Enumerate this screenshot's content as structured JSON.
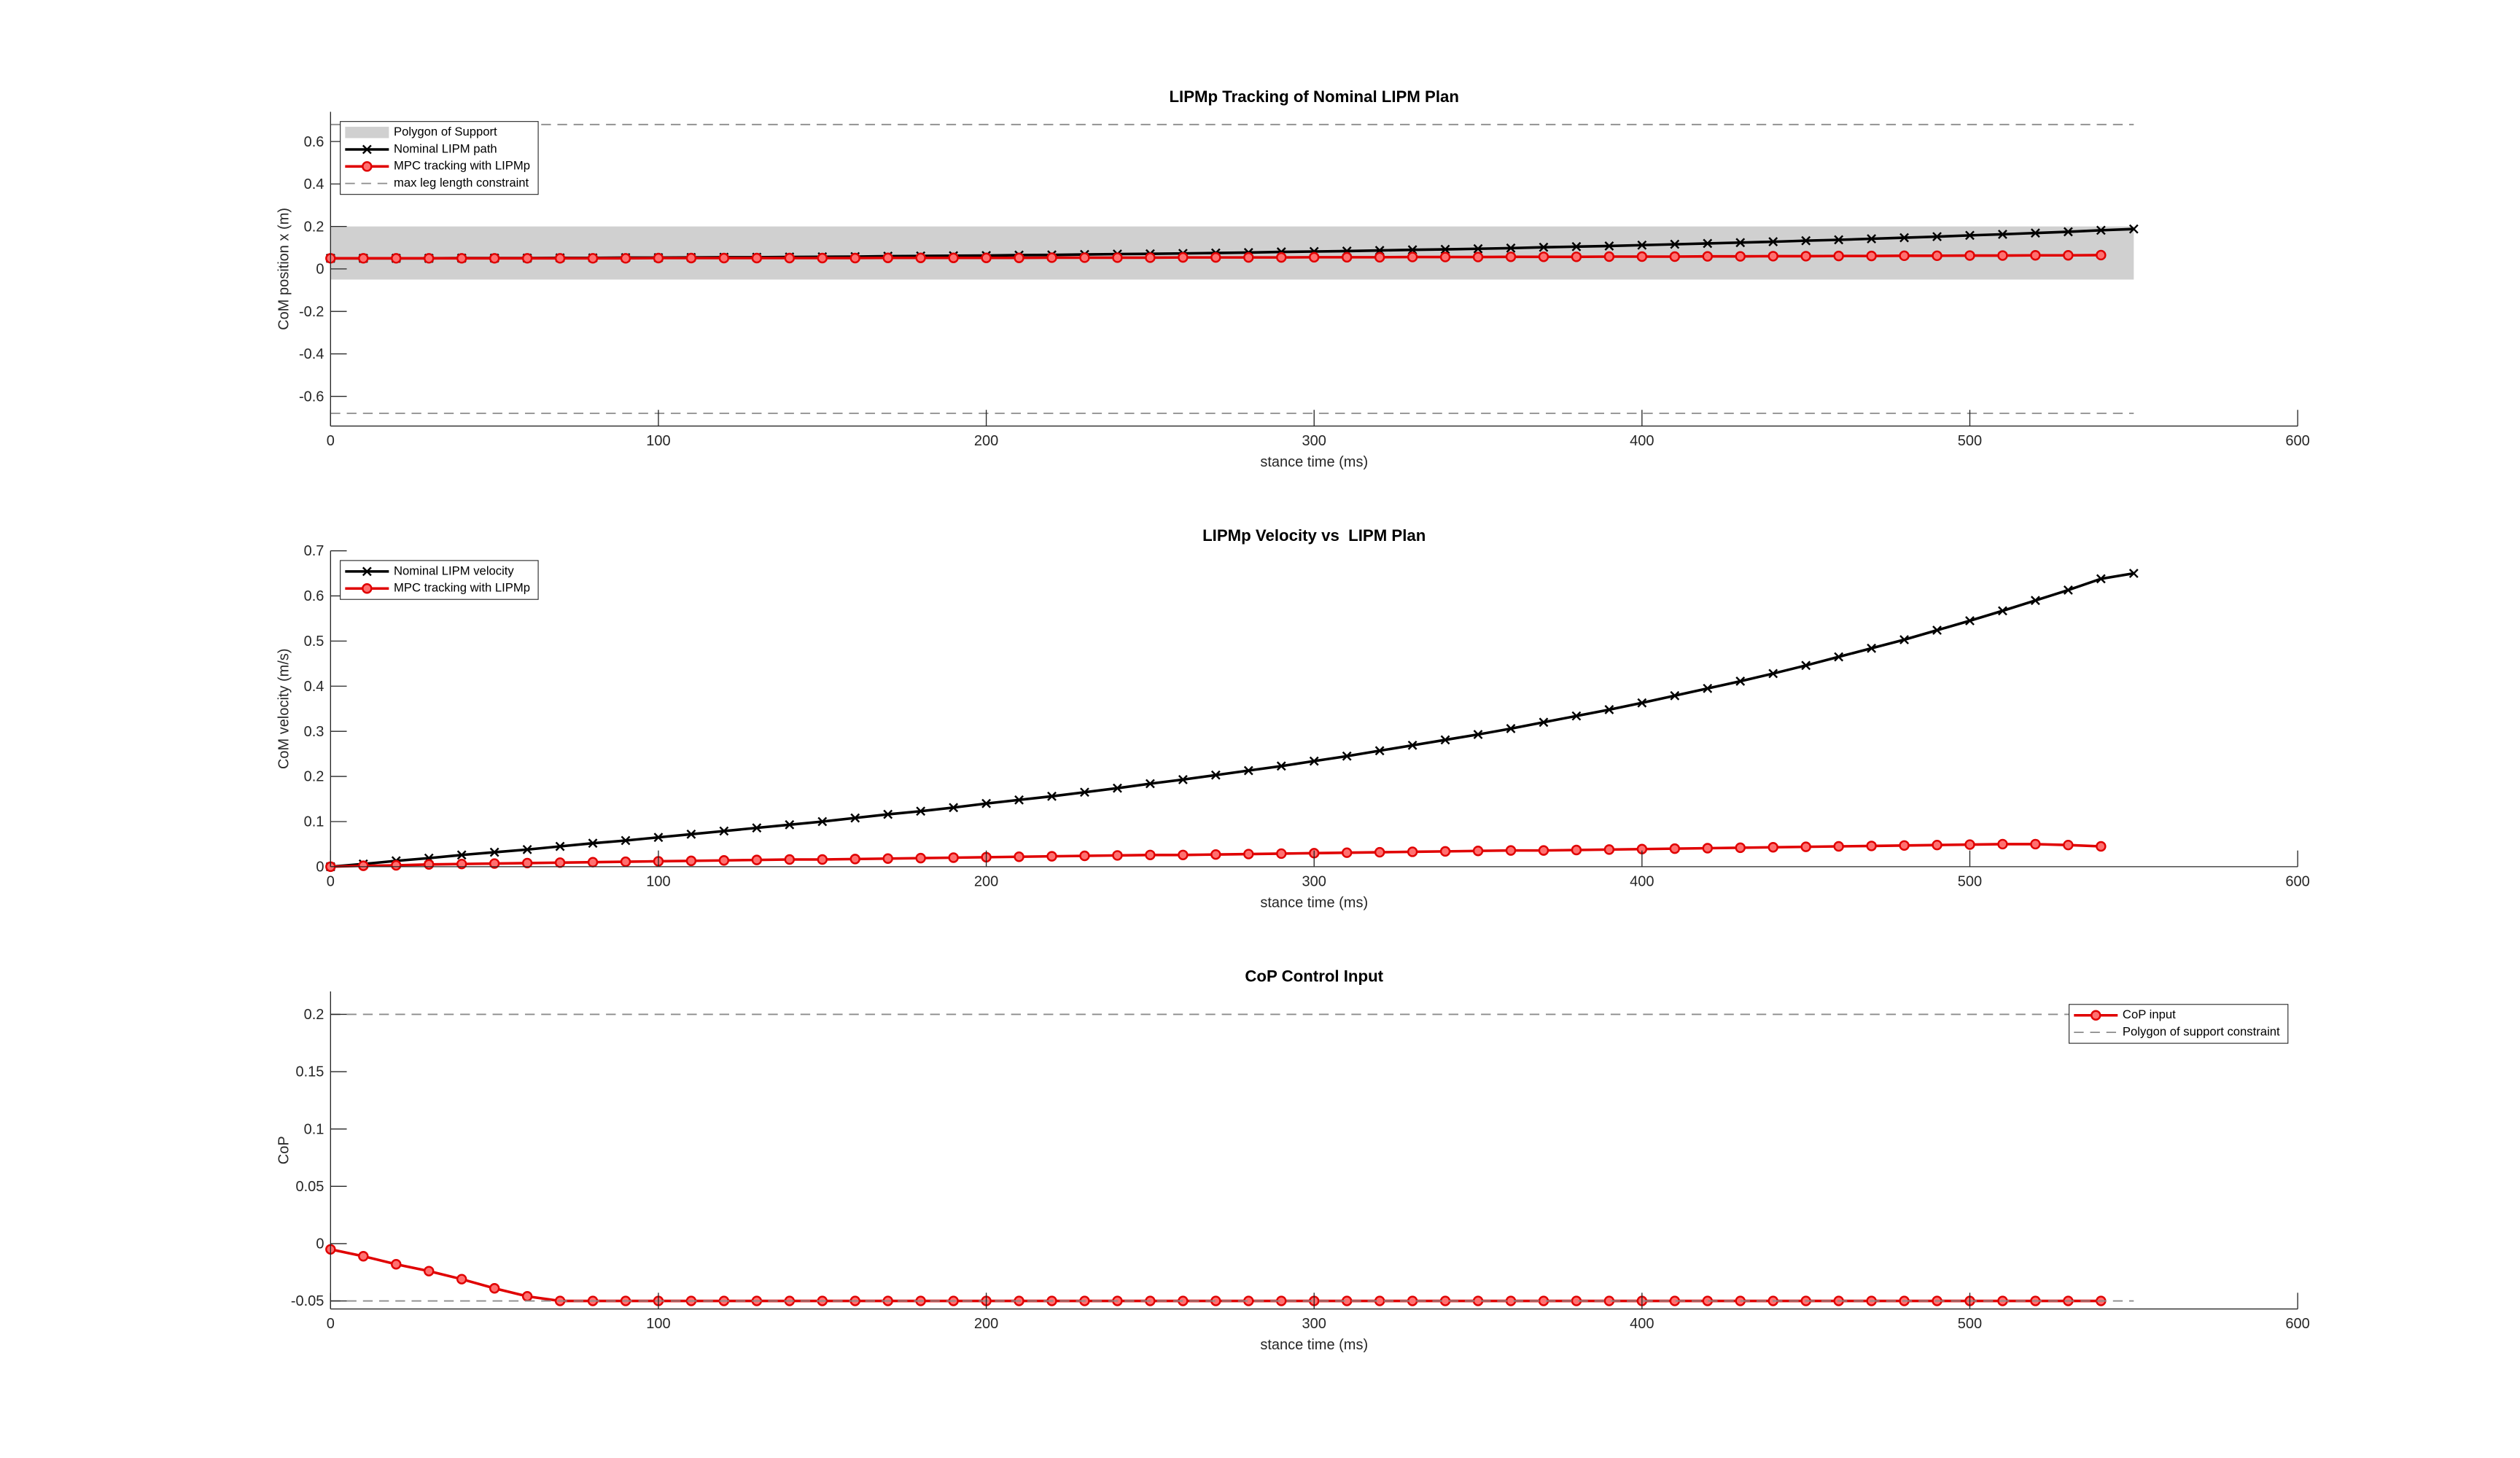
{
  "chart_data": [
    {
      "type": "line",
      "title": "LIPMp Tracking of Nominal LIPM Plan",
      "xlabel": "stance time (ms)",
      "ylabel": "CoM position x (m)",
      "xlim": [
        0,
        600
      ],
      "xticks": [
        0,
        100,
        200,
        300,
        400,
        500,
        600
      ],
      "ylim": [
        -0.74,
        0.74
      ],
      "yticks": [
        -0.6,
        -0.4,
        -0.2,
        0,
        0.2,
        0.4,
        0.6
      ],
      "legend": "upper left",
      "x": [
        0,
        10,
        20,
        30,
        40,
        50,
        60,
        70,
        80,
        90,
        100,
        110,
        120,
        130,
        140,
        150,
        160,
        170,
        180,
        190,
        200,
        210,
        220,
        230,
        240,
        250,
        260,
        270,
        280,
        290,
        300,
        310,
        320,
        330,
        340,
        350,
        360,
        370,
        380,
        390,
        400,
        410,
        420,
        430,
        440,
        450,
        460,
        470,
        480,
        490,
        500,
        510,
        520,
        530,
        540,
        550
      ],
      "series": [
        {
          "name": "Polygon of Support",
          "style": "band",
          "color": "#d0d0d0",
          "x": [
            0,
            550
          ],
          "values": [
            0.2,
            0.2
          ],
          "lower": [
            -0.05,
            -0.05
          ]
        },
        {
          "name": "Nominal LIPM path",
          "style": "line",
          "marker": "x",
          "color": "#000000",
          "values": [
            0.05,
            0.05,
            0.05,
            0.05,
            0.051,
            0.051,
            0.051,
            0.052,
            0.052,
            0.053,
            0.053,
            0.054,
            0.055,
            0.055,
            0.056,
            0.057,
            0.058,
            0.06,
            0.061,
            0.062,
            0.063,
            0.065,
            0.066,
            0.068,
            0.07,
            0.071,
            0.073,
            0.075,
            0.077,
            0.08,
            0.082,
            0.084,
            0.087,
            0.09,
            0.092,
            0.095,
            0.098,
            0.102,
            0.105,
            0.108,
            0.112,
            0.116,
            0.12,
            0.124,
            0.128,
            0.133,
            0.137,
            0.142,
            0.147,
            0.152,
            0.158,
            0.163,
            0.169,
            0.175,
            0.182,
            0.188
          ]
        },
        {
          "name": "MPC tracking with LIPMp",
          "style": "line",
          "marker": "o",
          "color": "#e00000",
          "values": [
            0.05,
            0.05,
            0.05,
            0.05,
            0.05,
            0.05,
            0.05,
            0.05,
            0.05,
            0.05,
            0.051,
            0.051,
            0.051,
            0.051,
            0.051,
            0.051,
            0.051,
            0.052,
            0.052,
            0.052,
            0.052,
            0.052,
            0.053,
            0.053,
            0.053,
            0.053,
            0.054,
            0.054,
            0.054,
            0.054,
            0.055,
            0.055,
            0.055,
            0.056,
            0.056,
            0.056,
            0.057,
            0.057,
            0.057,
            0.058,
            0.058,
            0.058,
            0.059,
            0.059,
            0.06,
            0.06,
            0.061,
            0.061,
            0.062,
            0.062,
            0.063,
            0.063,
            0.064,
            0.064,
            0.065,
            null
          ]
        },
        {
          "name": "max leg length constraint",
          "style": "dashed",
          "color": "#8c8c8c",
          "x": [
            0,
            550
          ],
          "values": [
            0.68,
            0.68
          ],
          "lower": [
            -0.68,
            -0.68
          ]
        }
      ]
    },
    {
      "type": "line",
      "title": "LIPMp Velocity vs  LIPM Plan",
      "xlabel": "stance time (ms)",
      "ylabel": "CoM velocity (m/s)",
      "xlim": [
        0,
        600
      ],
      "xticks": [
        0,
        100,
        200,
        300,
        400,
        500,
        600
      ],
      "ylim": [
        0,
        0.7
      ],
      "yticks": [
        0,
        0.1,
        0.2,
        0.3,
        0.4,
        0.5,
        0.6,
        0.7
      ],
      "legend": "upper left",
      "x": [
        0,
        10,
        20,
        30,
        40,
        50,
        60,
        70,
        80,
        90,
        100,
        110,
        120,
        130,
        140,
        150,
        160,
        170,
        180,
        190,
        200,
        210,
        220,
        230,
        240,
        250,
        260,
        270,
        280,
        290,
        300,
        310,
        320,
        330,
        340,
        350,
        360,
        370,
        380,
        390,
        400,
        410,
        420,
        430,
        440,
        450,
        460,
        470,
        480,
        490,
        500,
        510,
        520,
        530,
        540,
        550
      ],
      "series": [
        {
          "name": "Nominal LIPM velocity",
          "style": "line",
          "marker": "x",
          "color": "#000000",
          "values": [
            0,
            0.006,
            0.013,
            0.019,
            0.026,
            0.032,
            0.038,
            0.045,
            0.052,
            0.058,
            0.065,
            0.072,
            0.079,
            0.086,
            0.093,
            0.1,
            0.108,
            0.116,
            0.123,
            0.131,
            0.14,
            0.148,
            0.156,
            0.165,
            0.174,
            0.184,
            0.193,
            0.203,
            0.213,
            0.223,
            0.234,
            0.245,
            0.257,
            0.269,
            0.281,
            0.293,
            0.306,
            0.32,
            0.334,
            0.348,
            0.363,
            0.379,
            0.395,
            0.411,
            0.428,
            0.446,
            0.465,
            0.484,
            0.503,
            0.524,
            0.545,
            0.567,
            0.59,
            0.613,
            0.638,
            0.65
          ]
        },
        {
          "name": "MPC tracking with LIPMp",
          "style": "line",
          "marker": "o",
          "color": "#e00000",
          "values": [
            0,
            0.002,
            0.003,
            0.005,
            0.006,
            0.007,
            0.008,
            0.009,
            0.01,
            0.011,
            0.012,
            0.013,
            0.014,
            0.015,
            0.016,
            0.016,
            0.017,
            0.018,
            0.019,
            0.02,
            0.021,
            0.022,
            0.023,
            0.024,
            0.025,
            0.026,
            0.026,
            0.027,
            0.028,
            0.029,
            0.03,
            0.031,
            0.032,
            0.033,
            0.034,
            0.035,
            0.036,
            0.036,
            0.037,
            0.038,
            0.039,
            0.04,
            0.041,
            0.042,
            0.043,
            0.044,
            0.045,
            0.046,
            0.047,
            0.048,
            0.049,
            0.05,
            0.05,
            0.048,
            0.045,
            null
          ]
        }
      ]
    },
    {
      "type": "line",
      "title": "CoP Control Input",
      "xlabel": "stance time (ms)",
      "ylabel": "CoP",
      "xlim": [
        0,
        600
      ],
      "xticks": [
        0,
        100,
        200,
        300,
        400,
        500,
        600
      ],
      "ylim": [
        -0.057,
        0.22
      ],
      "yticks": [
        -0.05,
        0,
        0.05,
        0.1,
        0.15,
        0.2
      ],
      "legend": "upper right",
      "x": [
        0,
        10,
        20,
        30,
        40,
        50,
        60,
        70,
        80,
        90,
        100,
        110,
        120,
        130,
        140,
        150,
        160,
        170,
        180,
        190,
        200,
        210,
        220,
        230,
        240,
        250,
        260,
        270,
        280,
        290,
        300,
        310,
        320,
        330,
        340,
        350,
        360,
        370,
        380,
        390,
        400,
        410,
        420,
        430,
        440,
        450,
        460,
        470,
        480,
        490,
        500,
        510,
        520,
        530,
        540,
        550
      ],
      "series": [
        {
          "name": "CoP input",
          "style": "line",
          "marker": "o",
          "color": "#e00000",
          "values": [
            -0.005,
            -0.011,
            -0.018,
            -0.024,
            -0.031,
            -0.039,
            -0.046,
            -0.05,
            -0.05,
            -0.05,
            -0.05,
            -0.05,
            -0.05,
            -0.05,
            -0.05,
            -0.05,
            -0.05,
            -0.05,
            -0.05,
            -0.05,
            -0.05,
            -0.05,
            -0.05,
            -0.05,
            -0.05,
            -0.05,
            -0.05,
            -0.05,
            -0.05,
            -0.05,
            -0.05,
            -0.05,
            -0.05,
            -0.05,
            -0.05,
            -0.05,
            -0.05,
            -0.05,
            -0.05,
            -0.05,
            -0.05,
            -0.05,
            -0.05,
            -0.05,
            -0.05,
            -0.05,
            -0.05,
            -0.05,
            -0.05,
            -0.05,
            -0.05,
            -0.05,
            -0.05,
            -0.05,
            -0.05,
            null
          ]
        },
        {
          "name": "Polygon of support constraint",
          "style": "dashed",
          "color": "#8c8c8c",
          "x": [
            0,
            550
          ],
          "values": [
            0.2,
            0.2
          ],
          "lower": [
            -0.05,
            -0.05
          ]
        }
      ]
    }
  ]
}
